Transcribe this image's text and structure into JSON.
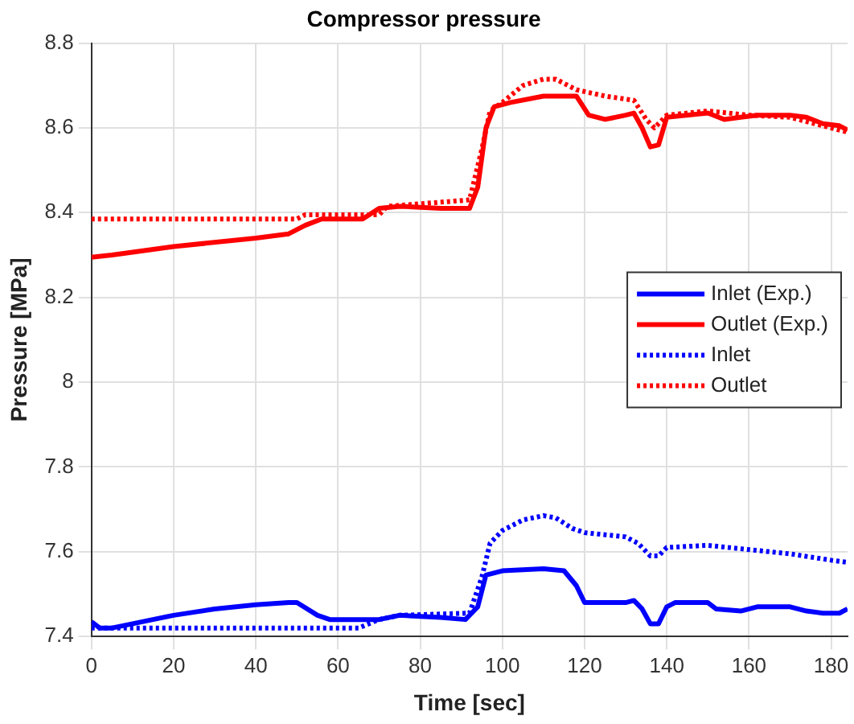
{
  "chart_data": {
    "type": "line",
    "title": "Compressor pressure",
    "xlabel": "Time [sec]",
    "ylabel": "Pressure [MPa]",
    "xlim": [
      0,
      184
    ],
    "xticks": [
      0,
      20,
      40,
      60,
      80,
      100,
      120,
      140,
      160,
      180
    ],
    "ylim": [
      7.4,
      8.8
    ],
    "yticks": [
      7.4,
      7.6,
      7.8,
      8,
      8.2,
      8.4,
      8.6,
      8.8
    ],
    "grid": true,
    "legend": "right",
    "marker": "none",
    "series": [
      {
        "name": "Inlet (Exp.)",
        "color": "#0000ff",
        "line_style": "solid",
        "x": [
          0,
          2,
          5,
          10,
          20,
          30,
          40,
          48,
          50,
          55,
          58,
          70,
          75,
          85,
          91,
          94,
          96,
          100,
          110,
          115,
          118,
          120,
          130,
          132,
          134,
          136,
          138,
          140,
          142,
          150,
          152,
          158,
          162,
          170,
          174,
          178,
          182,
          184
        ],
        "values": [
          7.435,
          7.42,
          7.42,
          7.43,
          7.45,
          7.465,
          7.475,
          7.48,
          7.48,
          7.45,
          7.44,
          7.44,
          7.45,
          7.445,
          7.44,
          7.47,
          7.545,
          7.555,
          7.56,
          7.555,
          7.52,
          7.48,
          7.48,
          7.485,
          7.465,
          7.43,
          7.43,
          7.47,
          7.48,
          7.48,
          7.465,
          7.46,
          7.47,
          7.47,
          7.46,
          7.455,
          7.455,
          7.465
        ]
      },
      {
        "name": "Outlet (Exp.)",
        "color": "#ff0000",
        "line_style": "solid",
        "x": [
          0,
          5,
          20,
          40,
          48,
          52,
          56,
          66,
          70,
          75,
          85,
          92,
          94,
          96,
          98,
          102,
          110,
          118,
          121,
          125,
          130,
          132,
          134,
          136,
          138,
          140,
          150,
          154,
          158,
          162,
          170,
          174,
          178,
          182,
          184
        ],
        "values": [
          8.295,
          8.3,
          8.32,
          8.34,
          8.35,
          8.37,
          8.385,
          8.385,
          8.41,
          8.415,
          8.41,
          8.41,
          8.46,
          8.6,
          8.65,
          8.66,
          8.675,
          8.675,
          8.63,
          8.62,
          8.63,
          8.635,
          8.6,
          8.555,
          8.56,
          8.625,
          8.635,
          8.62,
          8.625,
          8.63,
          8.63,
          8.625,
          8.61,
          8.605,
          8.595
        ]
      },
      {
        "name": "Inlet",
        "color": "#0000ff",
        "line_style": "dotted",
        "x": [
          0,
          65,
          70,
          75,
          92,
          95,
          97,
          100,
          105,
          110,
          113,
          117,
          120,
          130,
          133,
          136,
          138,
          140,
          150,
          160,
          170,
          180,
          184
        ],
        "values": [
          7.42,
          7.42,
          7.44,
          7.45,
          7.455,
          7.54,
          7.62,
          7.65,
          7.675,
          7.685,
          7.68,
          7.655,
          7.645,
          7.635,
          7.62,
          7.59,
          7.59,
          7.61,
          7.615,
          7.605,
          7.595,
          7.58,
          7.575
        ]
      },
      {
        "name": "Outlet",
        "color": "#ff0000",
        "line_style": "dotted",
        "x": [
          0,
          50,
          52,
          70,
          72,
          92,
          95,
          97,
          100,
          105,
          110,
          113,
          118,
          125,
          132,
          135,
          137,
          140,
          150,
          155,
          160,
          170,
          180,
          184
        ],
        "values": [
          8.385,
          8.385,
          8.395,
          8.395,
          8.415,
          8.43,
          8.55,
          8.64,
          8.66,
          8.7,
          8.715,
          8.715,
          8.69,
          8.675,
          8.665,
          8.62,
          8.6,
          8.63,
          8.64,
          8.635,
          8.63,
          8.625,
          8.6,
          8.59
        ]
      }
    ]
  }
}
